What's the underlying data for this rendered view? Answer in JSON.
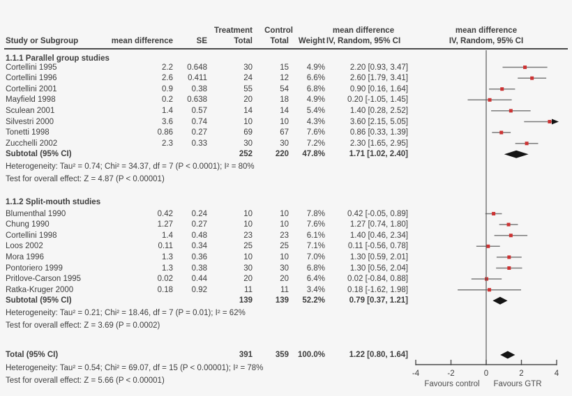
{
  "header": {
    "treatment": "Treatment",
    "control": "Control",
    "study_or_subgroup": "Study or Subgroup",
    "mean_difference": "mean difference",
    "se": "SE",
    "total": "Total",
    "weight": "Weight",
    "ci_line1": "mean difference",
    "ci_line2": "IV, Random, 95% CI",
    "plot_line1": "mean difference",
    "plot_line2": "IV, Random, 95% CI"
  },
  "colors": {
    "background": "#f6f6f6",
    "text": "#3d3d3d",
    "marker_red": "#cc3333",
    "ci_line_gray": "#7a7a7a",
    "diamond_black": "#141414",
    "axis": "#4a4a4a"
  },
  "chart_data": {
    "type": "forest",
    "effect_measure": "mean difference",
    "model": "IV, Random, 95% CI",
    "axis": {
      "min": -4,
      "max": 4,
      "ticks": [
        "-4",
        "-2",
        "0",
        "2",
        "4"
      ],
      "favours_left": "Favours control",
      "favours_right": "Favours GTR"
    },
    "sections": [
      {
        "title": "1.1.1 Parallel group studies",
        "studies": [
          {
            "study": "Cortellini 1995",
            "md": "2.2",
            "se": "0.648",
            "treatment_total": "30",
            "control_total": "15",
            "weight": "4.9%",
            "ci": "2.20 [0.93, 3.47]",
            "est": 2.2,
            "lo": 0.93,
            "hi": 3.47
          },
          {
            "study": "Cortellini 1996",
            "md": "2.6",
            "se": "0.411",
            "treatment_total": "24",
            "control_total": "12",
            "weight": "6.6%",
            "ci": "2.60 [1.79, 3.41]",
            "est": 2.6,
            "lo": 1.79,
            "hi": 3.41
          },
          {
            "study": "Cortellini 2001",
            "md": "0.9",
            "se": "0.38",
            "treatment_total": "55",
            "control_total": "54",
            "weight": "6.8%",
            "ci": "0.90 [0.16, 1.64]",
            "est": 0.9,
            "lo": 0.16,
            "hi": 1.64
          },
          {
            "study": "Mayfield 1998",
            "md": "0.2",
            "se": "0.638",
            "treatment_total": "20",
            "control_total": "18",
            "weight": "4.9%",
            "ci": "0.20 [-1.05, 1.45]",
            "est": 0.2,
            "lo": -1.05,
            "hi": 1.45
          },
          {
            "study": "Sculean 2001",
            "md": "1.4",
            "se": "0.57",
            "treatment_total": "14",
            "control_total": "14",
            "weight": "5.4%",
            "ci": "1.40 [0.28, 2.52]",
            "est": 1.4,
            "lo": 0.28,
            "hi": 2.52
          },
          {
            "study": "Silvestri 2000",
            "md": "3.6",
            "se": "0.74",
            "treatment_total": "10",
            "control_total": "10",
            "weight": "4.3%",
            "ci": "3.60 [2.15, 5.05]",
            "est": 3.6,
            "lo": 2.15,
            "hi": 5.05
          },
          {
            "study": "Tonetti 1998",
            "md": "0.86",
            "se": "0.27",
            "treatment_total": "69",
            "control_total": "67",
            "weight": "7.6%",
            "ci": "0.86 [0.33, 1.39]",
            "est": 0.86,
            "lo": 0.33,
            "hi": 1.39
          },
          {
            "study": "Zucchelli 2002",
            "md": "2.3",
            "se": "0.33",
            "treatment_total": "30",
            "control_total": "30",
            "weight": "7.2%",
            "ci": "2.30 [1.65, 2.95]",
            "est": 2.3,
            "lo": 1.65,
            "hi": 2.95
          }
        ],
        "subtotal": {
          "label": "Subtotal (95% CI)",
          "treatment_total": "252",
          "control_total": "220",
          "weight": "47.8%",
          "ci": "1.71 [1.02, 2.40]",
          "est": 1.71,
          "lo": 1.02,
          "hi": 2.4
        },
        "heterogeneity": "Heterogeneity: Tau² = 0.74; Chi² = 34.37, df = 7 (P < 0.0001); I² = 80%",
        "overall_effect": "Test for overall effect: Z = 4.87 (P < 0.00001)"
      },
      {
        "title": "1.1.2 Split-mouth studies",
        "studies": [
          {
            "study": "Blumenthal 1990",
            "md": "0.42",
            "se": "0.24",
            "treatment_total": "10",
            "control_total": "10",
            "weight": "7.8%",
            "ci": "0.42 [-0.05, 0.89]",
            "est": 0.42,
            "lo": -0.05,
            "hi": 0.89
          },
          {
            "study": "Chung 1990",
            "md": "1.27",
            "se": "0.27",
            "treatment_total": "10",
            "control_total": "10",
            "weight": "7.6%",
            "ci": "1.27 [0.74, 1.80]",
            "est": 1.27,
            "lo": 0.74,
            "hi": 1.8
          },
          {
            "study": "Cortellini 1998",
            "md": "1.4",
            "se": "0.48",
            "treatment_total": "23",
            "control_total": "23",
            "weight": "6.1%",
            "ci": "1.40 [0.46, 2.34]",
            "est": 1.4,
            "lo": 0.46,
            "hi": 2.34
          },
          {
            "study": "Loos 2002",
            "md": "0.11",
            "se": "0.34",
            "treatment_total": "25",
            "control_total": "25",
            "weight": "7.1%",
            "ci": "0.11 [-0.56, 0.78]",
            "est": 0.11,
            "lo": -0.56,
            "hi": 0.78
          },
          {
            "study": "Mora 1996",
            "md": "1.3",
            "se": "0.36",
            "treatment_total": "10",
            "control_total": "10",
            "weight": "7.0%",
            "ci": "1.30 [0.59, 2.01]",
            "est": 1.3,
            "lo": 0.59,
            "hi": 2.01
          },
          {
            "study": "Pontoriero 1999",
            "md": "1.3",
            "se": "0.38",
            "treatment_total": "30",
            "control_total": "30",
            "weight": "6.8%",
            "ci": "1.30 [0.56, 2.04]",
            "est": 1.3,
            "lo": 0.56,
            "hi": 2.04
          },
          {
            "study": "Pritlove-Carson 1995",
            "md": "0.02",
            "se": "0.44",
            "treatment_total": "20",
            "control_total": "20",
            "weight": "6.4%",
            "ci": "0.02 [-0.84, 0.88]",
            "est": 0.02,
            "lo": -0.84,
            "hi": 0.88
          },
          {
            "study": "Ratka-Kruger 2000",
            "md": "0.18",
            "se": "0.92",
            "treatment_total": "11",
            "control_total": "11",
            "weight": "3.4%",
            "ci": "0.18 [-1.62, 1.98]",
            "est": 0.18,
            "lo": -1.62,
            "hi": 1.98
          }
        ],
        "subtotal": {
          "label": "Subtotal (95% CI)",
          "treatment_total": "139",
          "control_total": "139",
          "weight": "52.2%",
          "ci": "0.79 [0.37, 1.21]",
          "est": 0.79,
          "lo": 0.37,
          "hi": 1.21
        },
        "heterogeneity": "Heterogeneity: Tau² = 0.21; Chi² = 18.46, df = 7 (P = 0.01); I² = 62%",
        "overall_effect": "Test for overall effect: Z = 3.69 (P = 0.0002)"
      }
    ],
    "total": {
      "label": "Total (95% CI)",
      "treatment_total": "391",
      "control_total": "359",
      "weight": "100.0%",
      "ci": "1.22 [0.80, 1.64]",
      "est": 1.22,
      "lo": 0.8,
      "hi": 1.64,
      "heterogeneity": "Heterogeneity: Tau² = 0.54; Chi² = 69.07, df = 15 (P < 0.00001); I² = 78%",
      "overall_effect": "Test for overall effect: Z = 5.66 (P < 0.00001)"
    }
  }
}
